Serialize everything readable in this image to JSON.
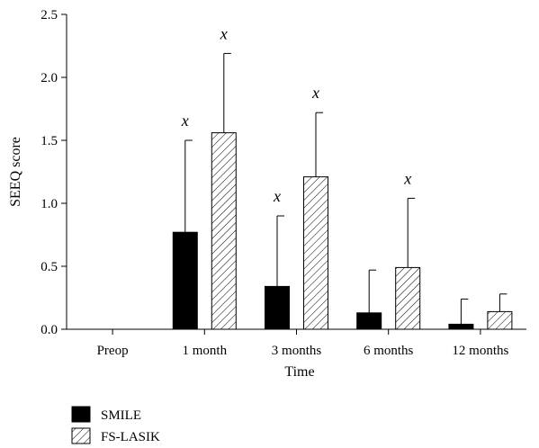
{
  "chart_data": {
    "type": "bar",
    "xlabel": "Time",
    "ylabel": "SEEQ score",
    "ylim": [
      0,
      2.5
    ],
    "yticks": [
      "0.0",
      "0.5",
      "1.0",
      "1.5",
      "2.0",
      "2.5"
    ],
    "categories": [
      "Preop",
      "1 month",
      "3 months",
      "6 months",
      "12 months"
    ],
    "series": [
      {
        "name": "SMILE",
        "fill": "#000000",
        "values": [
          0,
          0.77,
          0.34,
          0.13,
          0.04
        ],
        "error": [
          0,
          0.73,
          0.56,
          0.34,
          0.2
        ],
        "significance": [
          "",
          "x",
          "x",
          "",
          ""
        ]
      },
      {
        "name": "FS-LASIK",
        "fill": "hatched",
        "values": [
          0,
          1.56,
          1.21,
          0.49,
          0.14
        ],
        "error": [
          0,
          0.63,
          0.51,
          0.55,
          0.14
        ],
        "significance": [
          "",
          "x",
          "x",
          "x",
          ""
        ]
      }
    ],
    "legend": "bottom-left",
    "grid": false
  }
}
